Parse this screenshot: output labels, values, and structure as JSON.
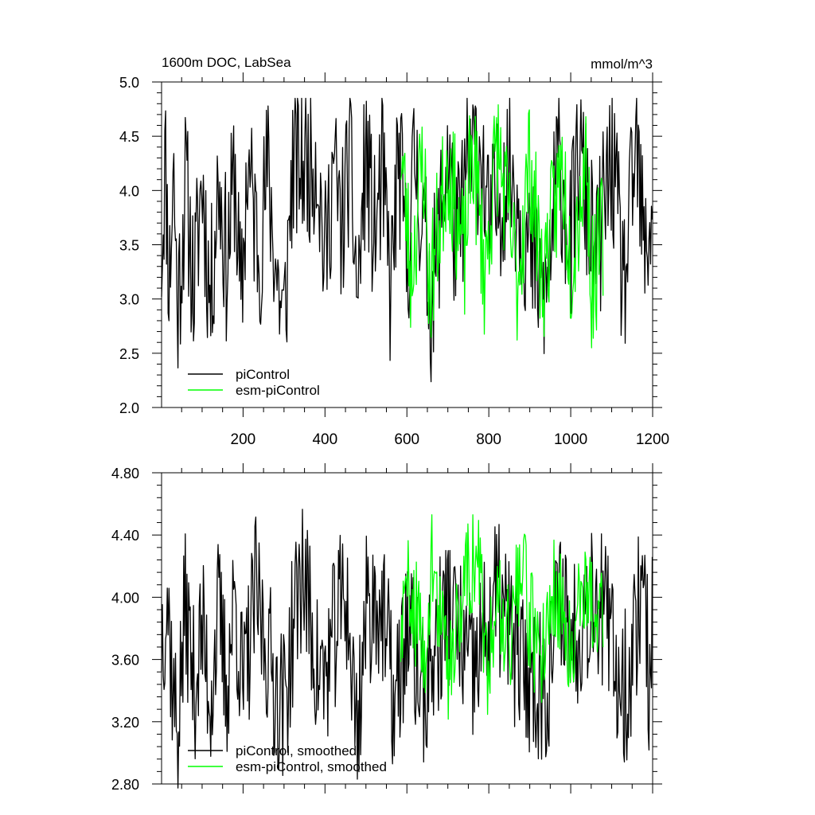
{
  "chart_data": [
    {
      "type": "line",
      "title": "1600m DOC, LabSea",
      "units": "mmol/m^3",
      "xlim": [
        1,
        1200
      ],
      "ylim": [
        2.0,
        5.0
      ],
      "x_ticks": [
        200,
        400,
        600,
        800,
        1000,
        1200
      ],
      "y_ticks": [
        "2.0",
        "2.5",
        "3.0",
        "3.5",
        "4.0",
        "4.5",
        "5.0"
      ],
      "legend_placement": "bottom-left",
      "series": [
        {
          "name": "piControl",
          "color": "#000000",
          "x_start": 1,
          "x_end": 1200,
          "mean": 3.75,
          "min": 2.05,
          "max": 4.85,
          "points": [
            [
              1,
              3.2
            ],
            [
              10,
              4.7
            ],
            [
              20,
              2.7
            ],
            [
              30,
              4.6
            ],
            [
              40,
              2.3
            ],
            [
              60,
              4.3
            ],
            [
              80,
              2.6
            ],
            [
              100,
              4.4
            ],
            [
              120,
              2.4
            ],
            [
              140,
              4.4
            ],
            [
              160,
              3.0
            ],
            [
              180,
              4.5
            ],
            [
              195,
              2.2
            ],
            [
              210,
              4.6
            ],
            [
              240,
              3.2
            ],
            [
              260,
              4.5
            ],
            [
              280,
              3.0
            ],
            [
              300,
              2.05
            ],
            [
              320,
              4.5
            ],
            [
              340,
              4.6
            ],
            [
              360,
              4.6
            ],
            [
              380,
              4.8
            ],
            [
              400,
              3.0
            ],
            [
              420,
              4.6
            ],
            [
              440,
              3.5
            ],
            [
              460,
              4.7
            ],
            [
              480,
              2.5
            ],
            [
              500,
              4.8
            ],
            [
              520,
              3.4
            ],
            [
              540,
              4.4
            ],
            [
              560,
              2.6
            ],
            [
              580,
              4.7
            ],
            [
              600,
              3.0
            ],
            [
              620,
              4.7
            ],
            [
              650,
              3.0
            ],
            [
              660,
              2.45
            ],
            [
              700,
              4.8
            ],
            [
              720,
              3.2
            ],
            [
              750,
              4.6
            ],
            [
              780,
              4.8
            ],
            [
              800,
              3.5
            ],
            [
              850,
              4.6
            ],
            [
              900,
              3.2
            ],
            [
              940,
              2.5
            ],
            [
              970,
              4.7
            ],
            [
              1000,
              3.3
            ],
            [
              1020,
              4.8
            ],
            [
              1060,
              3.0
            ],
            [
              1100,
              4.7
            ],
            [
              1130,
              2.6
            ],
            [
              1160,
              4.85
            ],
            [
              1180,
              3.1
            ],
            [
              1200,
              4.0
            ]
          ]
        },
        {
          "name": "esm-piControl",
          "color": "#00ff00",
          "x_start": 585,
          "x_end": 1080,
          "mean": 3.85,
          "min": 2.55,
          "max": 4.85,
          "points": [
            [
              585,
              4.8
            ],
            [
              610,
              2.8
            ],
            [
              640,
              4.7
            ],
            [
              655,
              2.55
            ],
            [
              700,
              4.6
            ],
            [
              740,
              3.0
            ],
            [
              760,
              4.85
            ],
            [
              790,
              2.8
            ],
            [
              820,
              4.8
            ],
            [
              870,
              2.7
            ],
            [
              900,
              4.6
            ],
            [
              930,
              2.7
            ],
            [
              980,
              4.5
            ],
            [
              1000,
              3.0
            ],
            [
              1040,
              4.7
            ],
            [
              1050,
              2.6
            ],
            [
              1080,
              3.5
            ]
          ]
        }
      ],
      "legend": [
        "piControl",
        "esm-piControl"
      ]
    },
    {
      "type": "line",
      "xlim": [
        1,
        1200
      ],
      "ylim": [
        2.8,
        4.8
      ],
      "x_ticks": [
        200,
        400,
        600,
        800,
        1000,
        1200
      ],
      "y_ticks": [
        "2.80",
        "3.20",
        "3.60",
        "4.00",
        "4.40",
        "4.80"
      ],
      "legend_placement": "bottom-left",
      "series": [
        {
          "name": "piControl, smoothed",
          "color": "#000000",
          "x_start": 1,
          "x_end": 1200,
          "mean": 3.75,
          "min": 2.75,
          "max": 4.62,
          "points": [
            [
              1,
              3.8
            ],
            [
              15,
              4.2
            ],
            [
              30,
              3.1
            ],
            [
              40,
              2.75
            ],
            [
              60,
              4.1
            ],
            [
              80,
              3.2
            ],
            [
              100,
              3.8
            ],
            [
              120,
              3.1
            ],
            [
              140,
              4.0
            ],
            [
              160,
              3.2
            ],
            [
              180,
              4.2
            ],
            [
              200,
              3.1
            ],
            [
              230,
              4.2
            ],
            [
              280,
              3.2
            ],
            [
              300,
              3.0
            ],
            [
              330,
              4.1
            ],
            [
              345,
              4.5
            ],
            [
              380,
              3.4
            ],
            [
              400,
              3.3
            ],
            [
              450,
              4.3
            ],
            [
              470,
              3.1
            ],
            [
              480,
              2.8
            ],
            [
              500,
              4.0
            ],
            [
              530,
              4.2
            ],
            [
              560,
              3.4
            ],
            [
              570,
              2.9
            ],
            [
              600,
              3.9
            ],
            [
              640,
              3.1
            ],
            [
              700,
              4.1
            ],
            [
              760,
              3.3
            ],
            [
              820,
              4.2
            ],
            [
              880,
              3.4
            ],
            [
              940,
              3.2
            ],
            [
              980,
              4.3
            ],
            [
              1000,
              3.7
            ],
            [
              1060,
              4.3
            ],
            [
              1120,
              3.3
            ],
            [
              1140,
              3.2
            ],
            [
              1180,
              4.6
            ],
            [
              1190,
              3.2
            ],
            [
              1200,
              4.0
            ]
          ]
        },
        {
          "name": "esm-piControl, smoothed",
          "color": "#00ff00",
          "x_start": 585,
          "x_end": 1080,
          "mean": 3.85,
          "min": 3.2,
          "max": 4.53,
          "points": [
            [
              585,
              3.7
            ],
            [
              610,
              4.3
            ],
            [
              640,
              3.4
            ],
            [
              660,
              4.5
            ],
            [
              700,
              3.3
            ],
            [
              750,
              4.5
            ],
            [
              780,
              4.4
            ],
            [
              790,
              3.2
            ],
            [
              820,
              4.2
            ],
            [
              850,
              3.7
            ],
            [
              880,
              4.4
            ],
            [
              920,
              3.4
            ],
            [
              960,
              4.2
            ],
            [
              1000,
              3.6
            ],
            [
              1040,
              4.4
            ],
            [
              1060,
              3.7
            ],
            [
              1080,
              4.0
            ]
          ]
        }
      ],
      "legend": [
        "piControl, smoothed",
        "esm-piControl, smoothed"
      ]
    }
  ]
}
